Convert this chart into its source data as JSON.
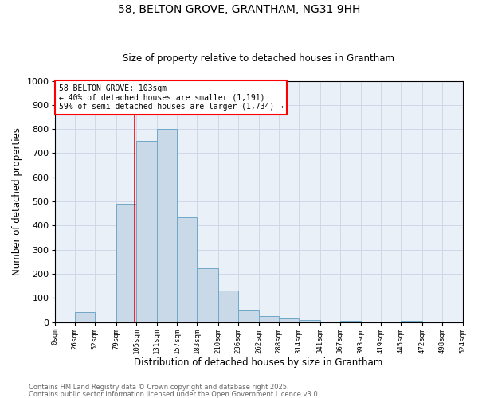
{
  "title1": "58, BELTON GROVE, GRANTHAM, NG31 9HH",
  "title2": "Size of property relative to detached houses in Grantham",
  "xlabel": "Distribution of detached houses by size in Grantham",
  "ylabel": "Number of detached properties",
  "bin_edges": [
    0,
    26,
    52,
    79,
    105,
    131,
    157,
    183,
    210,
    236,
    262,
    288,
    314,
    341,
    367,
    393,
    419,
    445,
    472,
    498,
    524
  ],
  "bar_heights": [
    0,
    42,
    0,
    490,
    750,
    800,
    435,
    225,
    130,
    50,
    27,
    15,
    8,
    0,
    7,
    0,
    0,
    7,
    0,
    0
  ],
  "bar_color": "#c9d9e8",
  "bar_edge_color": "#6fa8c8",
  "grid_color": "#d0d8e8",
  "background_color": "#eaf0f8",
  "property_line_x": 103,
  "property_line_color": "red",
  "annotation_text": "58 BELTON GROVE: 103sqm\n← 40% of detached houses are smaller (1,191)\n59% of semi-detached houses are larger (1,734) →",
  "annotation_box_color": "red",
  "ylim": [
    0,
    1000
  ],
  "yticks": [
    0,
    100,
    200,
    300,
    400,
    500,
    600,
    700,
    800,
    900,
    1000
  ],
  "tick_labels": [
    "0sqm",
    "26sqm",
    "52sqm",
    "79sqm",
    "105sqm",
    "131sqm",
    "157sqm",
    "183sqm",
    "210sqm",
    "236sqm",
    "262sqm",
    "288sqm",
    "314sqm",
    "341sqm",
    "367sqm",
    "393sqm",
    "419sqm",
    "445sqm",
    "472sqm",
    "498sqm",
    "524sqm"
  ],
  "footer1": "Contains HM Land Registry data © Crown copyright and database right 2025.",
  "footer2": "Contains public sector information licensed under the Open Government Licence v3.0.",
  "fig_width": 6.0,
  "fig_height": 5.0,
  "dpi": 100
}
